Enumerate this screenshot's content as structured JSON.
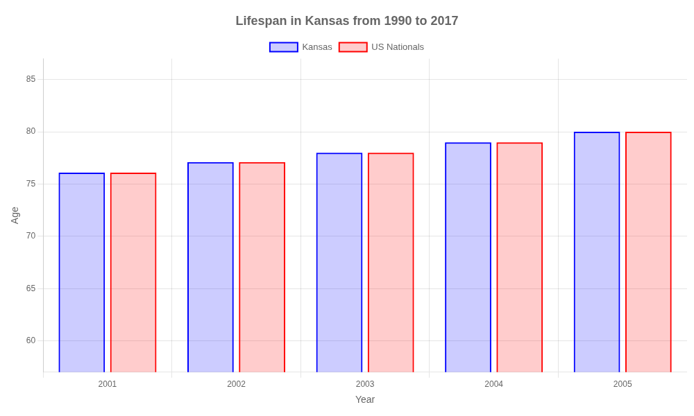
{
  "chart_data": {
    "type": "bar",
    "title": "Lifespan in Kansas from 1990 to 2017",
    "x_label": "Year",
    "y_label": "Age",
    "categories": [
      "2001",
      "2002",
      "2003",
      "2004",
      "2005"
    ],
    "series": [
      {
        "name": "Kansas",
        "color": "#0000ff",
        "values": [
          76.1,
          77.1,
          78.0,
          79.0,
          80.0
        ]
      },
      {
        "name": "US Nationals",
        "color": "#ff0000",
        "values": [
          76.1,
          77.1,
          78.0,
          79.0,
          80.0
        ]
      }
    ],
    "ylim": [
      57,
      87
    ],
    "yticks": [
      60,
      65,
      70,
      75,
      80,
      85
    ],
    "grid": true,
    "legend": "top"
  }
}
